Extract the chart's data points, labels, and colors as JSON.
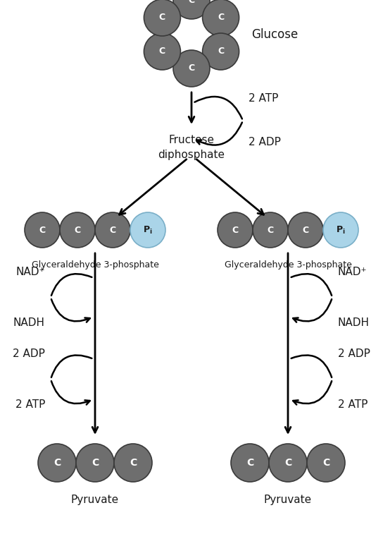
{
  "bg_color": "#ffffff",
  "dark_gray_fill": "#6e6e6e",
  "dark_gray_edge": "#3a3a3a",
  "blue_fill": "#aad4e8",
  "blue_edge": "#7aafc8",
  "text_color": "#1a1a1a",
  "glucose_label": "Glucose",
  "fructose_label": "Fructose\ndiphosphate",
  "g3p_label": "Glyceraldehyde 3-phosphate",
  "pyruvate_label": "Pyruvate",
  "atp_top_label": "2 ATP",
  "adp_top_label": "2 ADP",
  "nad_label": "NAD⁺",
  "nadh_label": "NADH",
  "adp2_label": "2 ADP",
  "atp2_label": "2 ATP"
}
